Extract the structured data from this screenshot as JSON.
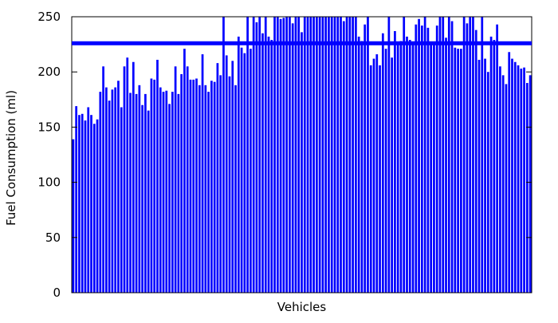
{
  "chart_data": {
    "type": "bar",
    "xlabel": "Vehicles",
    "ylabel": "Fuel Consumption (ml)",
    "ylim": [
      0,
      250
    ],
    "y_ticks": [
      0,
      50,
      100,
      150,
      200,
      250
    ],
    "y_tick_labels": [
      "0",
      "50",
      "100",
      "150",
      "200",
      "250"
    ],
    "grid": false,
    "legend": "none",
    "bar_color": "#0000ff",
    "reference_line": {
      "value": 226,
      "color": "#0000ff"
    },
    "values": [
      139,
      169,
      161,
      162,
      156,
      168,
      161,
      153,
      157,
      182,
      205,
      186,
      174,
      184,
      186,
      192,
      168,
      205,
      213,
      181,
      209,
      180,
      188,
      170,
      180,
      165,
      194,
      193,
      211,
      186,
      182,
      183,
      171,
      182,
      205,
      180,
      198,
      221,
      205,
      193,
      193,
      194,
      188,
      216,
      188,
      182,
      192,
      191,
      208,
      197,
      250,
      215,
      196,
      210,
      188,
      232,
      222,
      217,
      250,
      221,
      250,
      245,
      250,
      235,
      250,
      232,
      229,
      250,
      250,
      248,
      249,
      250,
      250,
      244,
      250,
      250,
      236,
      250,
      250,
      250,
      250,
      250,
      250,
      250,
      250,
      250,
      250,
      250,
      250,
      250,
      246,
      250,
      250,
      250,
      250,
      232,
      228,
      243,
      250,
      206,
      212,
      216,
      206,
      235,
      221,
      250,
      213,
      237,
      227,
      228,
      250,
      232,
      229,
      227,
      243,
      248,
      242,
      250,
      240,
      227,
      226,
      242,
      250,
      250,
      231,
      250,
      246,
      222,
      221,
      221,
      250,
      244,
      250,
      250,
      238,
      211,
      250,
      212,
      200,
      232,
      229,
      243,
      205,
      197,
      189,
      218,
      212,
      209,
      206,
      203,
      204,
      190,
      197
    ]
  }
}
